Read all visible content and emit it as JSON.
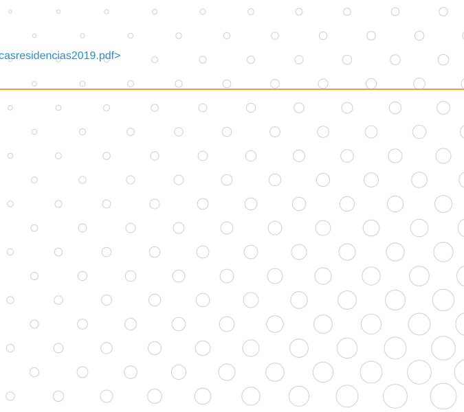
{
  "link": "casresidencias2019.pdf>"
}
